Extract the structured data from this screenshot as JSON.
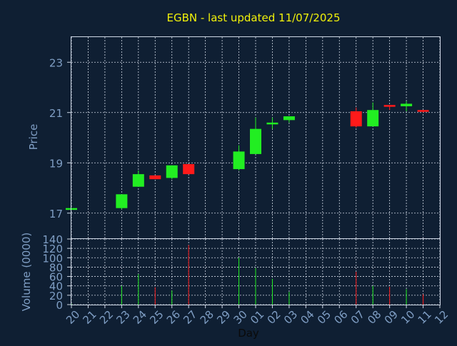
{
  "title": "EGBN - last updated 11/07/2025",
  "colors": {
    "background": "#0f1f33",
    "up": "#22ee22",
    "down": "#ff1a1a",
    "title": "#f2f20a",
    "axis_text": "#7f9ec4"
  },
  "chart_data": [
    {
      "type": "candlestick",
      "ylabel": "Price",
      "ylim": [
        16,
        24
      ],
      "yticks": [
        17,
        19,
        21,
        23
      ],
      "grid": true,
      "x": [
        "20",
        "21",
        "22",
        "23",
        "24",
        "25",
        "26",
        "27",
        "28",
        "29",
        "30",
        "01",
        "02",
        "03",
        "04",
        "05",
        "06",
        "07",
        "08",
        "09",
        "10",
        "11",
        "12"
      ],
      "candles": [
        {
          "x": "20",
          "open": 17.15,
          "close": 17.2,
          "high": 17.2,
          "low": 17.15
        },
        {
          "x": "23",
          "open": 17.2,
          "close": 17.75,
          "high": 17.75,
          "low": 17.15
        },
        {
          "x": "24",
          "open": 18.05,
          "close": 18.55,
          "high": 18.7,
          "low": 18.05
        },
        {
          "x": "25",
          "open": 18.5,
          "close": 18.35,
          "high": 18.5,
          "low": 18.35
        },
        {
          "x": "26",
          "open": 18.4,
          "close": 18.9,
          "high": 18.9,
          "low": 18.35
        },
        {
          "x": "27",
          "open": 18.95,
          "close": 18.55,
          "high": 18.95,
          "low": 18.55
        },
        {
          "x": "30",
          "open": 18.75,
          "close": 19.45,
          "high": 19.7,
          "low": 18.7
        },
        {
          "x": "01",
          "open": 19.35,
          "close": 20.35,
          "high": 20.8,
          "low": 19.35
        },
        {
          "x": "02",
          "open": 20.55,
          "close": 20.6,
          "high": 20.8,
          "low": 20.35
        },
        {
          "x": "03",
          "open": 20.7,
          "close": 20.85,
          "high": 20.85,
          "low": 20.6
        },
        {
          "x": "07",
          "open": 21.05,
          "close": 20.45,
          "high": 21.2,
          "low": 20.4
        },
        {
          "x": "08",
          "open": 20.45,
          "close": 21.1,
          "high": 21.4,
          "low": 20.45
        },
        {
          "x": "09",
          "open": 21.3,
          "close": 21.25,
          "high": 21.3,
          "low": 21.1
        },
        {
          "x": "10",
          "open": 21.25,
          "close": 21.35,
          "high": 21.45,
          "low": 21.05
        },
        {
          "x": "11",
          "open": 21.1,
          "close": 21.05,
          "high": 21.1,
          "low": 21.0
        }
      ]
    },
    {
      "type": "bar",
      "ylabel": "Volume (0000)",
      "xlabel": "Day",
      "ylim": [
        0,
        140
      ],
      "yticks": [
        0,
        20,
        40,
        60,
        80,
        100,
        120,
        140
      ],
      "grid": true,
      "categories": [
        "20",
        "21",
        "22",
        "23",
        "24",
        "25",
        "26",
        "27",
        "28",
        "29",
        "30",
        "01",
        "02",
        "03",
        "04",
        "05",
        "06",
        "07",
        "08",
        "09",
        "10",
        "11",
        "12"
      ],
      "bars": [
        {
          "x": "20",
          "value": 2,
          "direction": "up"
        },
        {
          "x": "23",
          "value": 40,
          "direction": "up"
        },
        {
          "x": "24",
          "value": 65,
          "direction": "up"
        },
        {
          "x": "25",
          "value": 37,
          "direction": "down"
        },
        {
          "x": "26",
          "value": 30,
          "direction": "up"
        },
        {
          "x": "27",
          "value": 127,
          "direction": "down"
        },
        {
          "x": "30",
          "value": 100,
          "direction": "up"
        },
        {
          "x": "01",
          "value": 78,
          "direction": "up"
        },
        {
          "x": "02",
          "value": 55,
          "direction": "up"
        },
        {
          "x": "03",
          "value": 27,
          "direction": "up"
        },
        {
          "x": "07",
          "value": 70,
          "direction": "down"
        },
        {
          "x": "08",
          "value": 40,
          "direction": "up"
        },
        {
          "x": "09",
          "value": 38,
          "direction": "down"
        },
        {
          "x": "10",
          "value": 33,
          "direction": "up"
        },
        {
          "x": "11",
          "value": 22,
          "direction": "down"
        }
      ]
    }
  ]
}
